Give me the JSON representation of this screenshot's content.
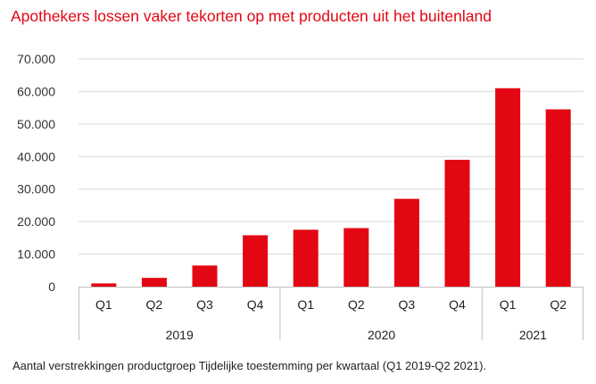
{
  "title": "Apothekers lossen vaker tekorten op met producten uit het buitenland",
  "caption": "Aantal verstrekkingen productgroep Tijdelijke toestemming per kwartaal (Q1 2019-Q2 2021).",
  "colors": {
    "bar": "#e30613",
    "title": "#e30613",
    "grid": "#d9d9d9",
    "axis": "#bfbfbf"
  },
  "chart_data": {
    "type": "bar",
    "title": "Apothekers lossen vaker tekorten op met producten uit het buitenland",
    "xlabel": "",
    "ylabel": "",
    "ylim": [
      0,
      70000
    ],
    "grid": true,
    "legend": "none",
    "y_ticks": [
      0,
      10000,
      20000,
      30000,
      40000,
      50000,
      60000,
      70000
    ],
    "y_tick_labels": [
      "0",
      "10.000",
      "20.000",
      "30.000",
      "40.000",
      "50.000",
      "60.000",
      "70.000"
    ],
    "categories": [
      "Q1",
      "Q2",
      "Q3",
      "Q4",
      "Q1",
      "Q2",
      "Q3",
      "Q4",
      "Q1",
      "Q2"
    ],
    "groups": [
      {
        "label": "2019",
        "count": 4
      },
      {
        "label": "2020",
        "count": 4
      },
      {
        "label": "2021",
        "count": 2
      }
    ],
    "values": [
      1000,
      2700,
      6500,
      15800,
      17500,
      18000,
      27000,
      39000,
      61000,
      54500
    ]
  }
}
